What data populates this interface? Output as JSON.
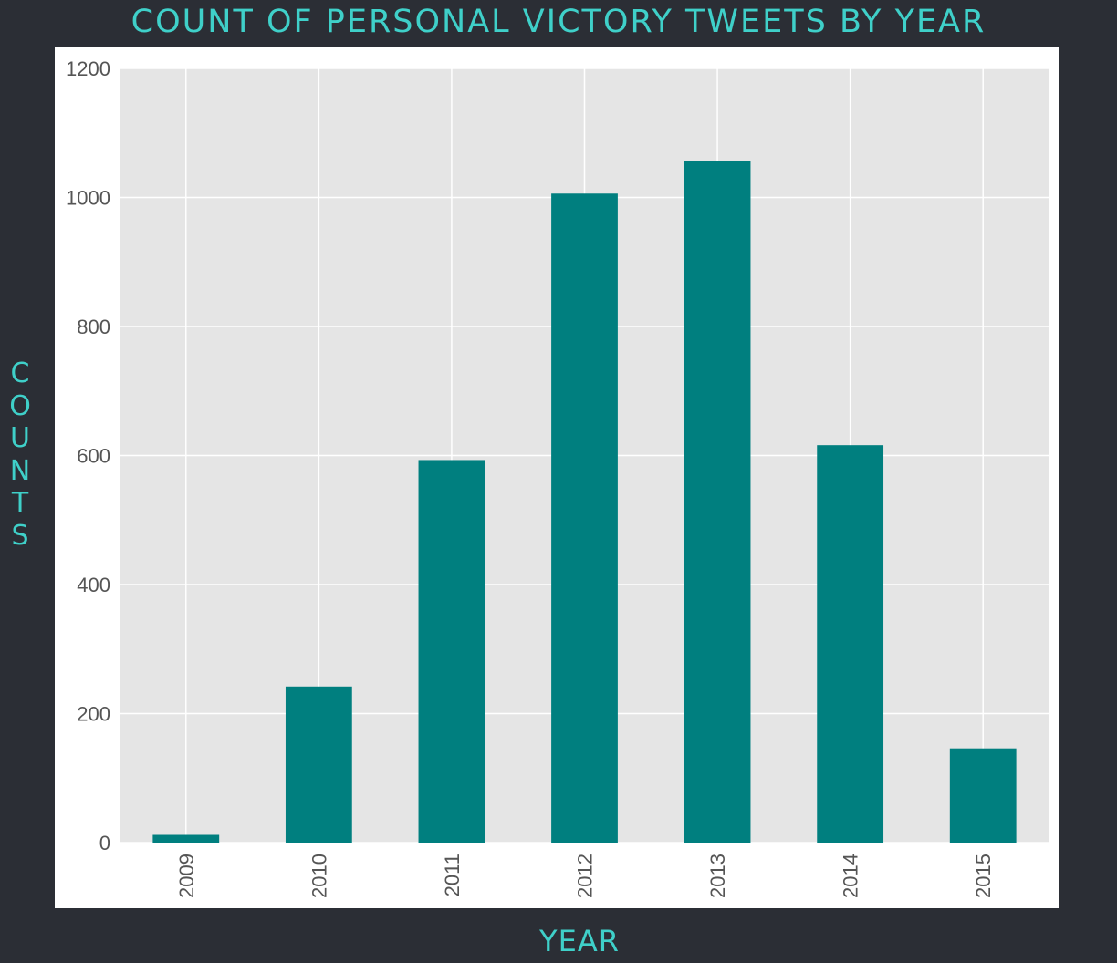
{
  "chart_data": {
    "type": "bar",
    "title": "COUNT OF PERSONAL VICTORY TWEETS BY YEAR",
    "xlabel": "YEAR",
    "ylabel": "COUNTS",
    "categories": [
      "2009",
      "2010",
      "2011",
      "2012",
      "2013",
      "2014",
      "2015"
    ],
    "values": [
      12,
      242,
      593,
      1006,
      1057,
      616,
      146
    ],
    "ylim": [
      0,
      1200
    ],
    "yticks": [
      0,
      200,
      400,
      600,
      800,
      1000,
      1200
    ],
    "grid": true,
    "bar_color": "#007f7f",
    "plot_background": "#e5e5e5",
    "grid_color": "#ffffff"
  },
  "colors": {
    "page_background": "#2b2e35",
    "accent": "#3fd0c9"
  }
}
